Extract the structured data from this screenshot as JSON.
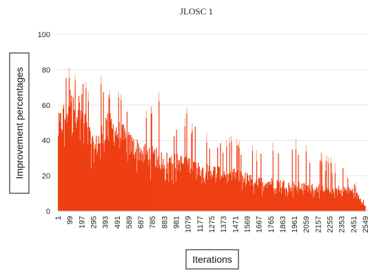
{
  "chart_data": {
    "type": "bar",
    "title": "JLOSC 1",
    "xlabel": "Iterations",
    "ylabel": "Improvement percentages",
    "ylim": [
      0,
      100
    ],
    "yticks": [
      "0",
      "20",
      "40",
      "60",
      "80",
      "100"
    ],
    "xtick_labels": [
      "1",
      "99",
      "197",
      "295",
      "393",
      "491",
      "589",
      "687",
      "785",
      "883",
      "981",
      "1079",
      "1177",
      "1275",
      "1373",
      "1471",
      "1569",
      "1667",
      "1765",
      "1863",
      "1961",
      "2059",
      "2157",
      "2255",
      "2353",
      "2451",
      "2549"
    ],
    "grid": "horizontal",
    "legend": "none",
    "bar_color": "#ef3e12",
    "highlight_color": "#f5a583",
    "series": [
      {
        "x": [
          1,
          99,
          197,
          295,
          393,
          491,
          589,
          687,
          785,
          883,
          981,
          1079,
          1177,
          1275,
          1373,
          1471,
          1569,
          1667,
          1765,
          1863,
          1961,
          2059,
          2157,
          2255,
          2353,
          2451,
          2549
        ],
        "values": [
          45,
          60,
          55,
          33,
          47,
          44,
          37,
          33,
          30,
          28,
          27,
          26,
          24,
          22,
          21,
          20,
          18,
          16,
          16,
          15,
          14,
          13,
          13,
          12,
          12,
          11,
          3
        ],
        "peaks": [
          66,
          82,
          76,
          76,
          77,
          66,
          57,
          55,
          58,
          73,
          48,
          57,
          46,
          40,
          38,
          41,
          35,
          35,
          37,
          49,
          44,
          35,
          32,
          28,
          26,
          17,
          5
        ]
      }
    ]
  }
}
